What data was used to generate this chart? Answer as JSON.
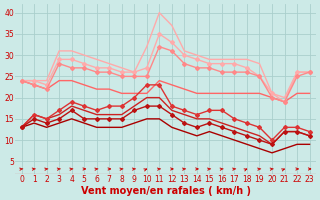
{
  "x": [
    0,
    1,
    2,
    3,
    4,
    5,
    6,
    7,
    8,
    9,
    10,
    11,
    12,
    13,
    14,
    15,
    16,
    17,
    18,
    19,
    20,
    21,
    22,
    23
  ],
  "series": [
    {
      "color": "#ffaaaa",
      "lw": 1.0,
      "marker": null,
      "values": [
        24,
        24,
        24,
        31,
        31,
        30,
        29,
        28,
        27,
        26,
        32,
        40,
        37,
        31,
        30,
        29,
        29,
        29,
        29,
        28,
        21,
        20,
        26,
        26
      ]
    },
    {
      "color": "#ffaaaa",
      "lw": 1.0,
      "marker": "D",
      "markersize": 2.0,
      "values": [
        24,
        24,
        23,
        29,
        29,
        28,
        27,
        27,
        26,
        26,
        27,
        35,
        33,
        30,
        29,
        28,
        28,
        28,
        27,
        25,
        21,
        19,
        26,
        26
      ]
    },
    {
      "color": "#ff8888",
      "lw": 1.0,
      "marker": "D",
      "markersize": 2.0,
      "values": [
        24,
        23,
        22,
        28,
        27,
        27,
        26,
        26,
        25,
        25,
        25,
        32,
        31,
        28,
        27,
        27,
        26,
        26,
        26,
        25,
        20,
        19,
        25,
        26
      ]
    },
    {
      "color": "#ff6666",
      "lw": 1.0,
      "marker": null,
      "values": [
        24,
        23,
        22,
        24,
        24,
        23,
        22,
        22,
        21,
        21,
        21,
        24,
        23,
        22,
        21,
        21,
        21,
        21,
        21,
        21,
        20,
        19,
        21,
        21
      ]
    },
    {
      "color": "#dd3333",
      "lw": 1.0,
      "marker": "D",
      "markersize": 2.0,
      "values": [
        13,
        16,
        15,
        17,
        19,
        18,
        17,
        18,
        18,
        20,
        23,
        23,
        18,
        17,
        16,
        17,
        17,
        15,
        14,
        13,
        10,
        13,
        13,
        12
      ]
    },
    {
      "color": "#cc2222",
      "lw": 1.0,
      "marker": null,
      "values": [
        13,
        16,
        15,
        16,
        18,
        17,
        16,
        16,
        16,
        18,
        20,
        20,
        17,
        16,
        15,
        15,
        14,
        13,
        12,
        11,
        9,
        12,
        12,
        11
      ]
    },
    {
      "color": "#bb1111",
      "lw": 1.0,
      "marker": "D",
      "markersize": 2.0,
      "values": [
        13,
        15,
        14,
        15,
        17,
        15,
        15,
        15,
        15,
        17,
        18,
        18,
        16,
        14,
        13,
        14,
        13,
        12,
        11,
        10,
        9,
        12,
        12,
        11
      ]
    },
    {
      "color": "#aa0000",
      "lw": 1.0,
      "marker": null,
      "values": [
        13,
        14,
        13,
        14,
        15,
        14,
        13,
        13,
        13,
        14,
        15,
        15,
        13,
        12,
        11,
        12,
        11,
        10,
        9,
        8,
        7,
        8,
        9,
        9
      ]
    }
  ],
  "arrows": {
    "y": 3.2,
    "color": "#cc0000",
    "angles": [
      45,
      45,
      45,
      45,
      45,
      15,
      45,
      15,
      45,
      45,
      75,
      45,
      15,
      45,
      15,
      45,
      45,
      45,
      75,
      45,
      45,
      75,
      15,
      15
    ]
  },
  "xlabel": "Vent moyen/en rafales ( km/h )",
  "ylim": [
    2,
    42
  ],
  "xlim": [
    -0.5,
    23.5
  ],
  "yticks": [
    5,
    10,
    15,
    20,
    25,
    30,
    35,
    40
  ],
  "xticks": [
    0,
    1,
    2,
    3,
    4,
    5,
    6,
    7,
    8,
    9,
    10,
    11,
    12,
    13,
    14,
    15,
    16,
    17,
    18,
    19,
    20,
    21,
    22,
    23
  ],
  "bg_color": "#cceae7",
  "grid_color": "#aacfcc",
  "label_color": "#cc0000",
  "tick_fontsize": 5.5,
  "xlabel_fontsize": 7.0
}
